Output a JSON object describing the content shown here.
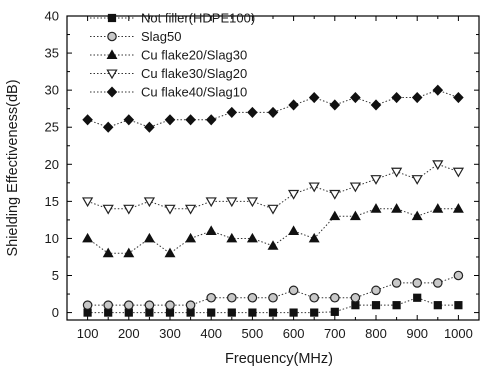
{
  "chart_data": {
    "type": "line",
    "xlabel": "Frequency(MHz)",
    "ylabel": "Shielding Effectiveness(dB)",
    "xlim": [
      50,
      1050
    ],
    "ylim": [
      -1,
      40
    ],
    "x_ticks": [
      "100",
      "200",
      "300",
      "400",
      "500",
      "600",
      "700",
      "800",
      "900",
      "1000"
    ],
    "y_ticks": [
      "0",
      "5",
      "10",
      "15",
      "20",
      "25",
      "30",
      "35",
      "40"
    ],
    "x": [
      100,
      150,
      200,
      250,
      300,
      350,
      400,
      450,
      500,
      550,
      600,
      650,
      700,
      750,
      800,
      850,
      900,
      950,
      1000
    ],
    "grid": false,
    "legend_position": "top-left",
    "series": [
      {
        "name": "Not filler(HDPE100)",
        "marker": "square-filled",
        "values": [
          0,
          0,
          0,
          0,
          0,
          0,
          0,
          0,
          0,
          0,
          0,
          0,
          0.1,
          1,
          1,
          1,
          2,
          1,
          1
        ]
      },
      {
        "name": "Slag50",
        "marker": "circle-open",
        "values": [
          1,
          1,
          1,
          1,
          1,
          1,
          2,
          2,
          2,
          2,
          3,
          2,
          2,
          2,
          3,
          4,
          4,
          4,
          5
        ]
      },
      {
        "name": "Cu flake20/Slag30",
        "marker": "triangle-up-filled",
        "values": [
          10,
          8,
          8,
          10,
          8,
          10,
          11,
          10,
          10,
          9,
          11,
          10,
          13,
          13,
          14,
          14,
          13,
          14,
          14
        ]
      },
      {
        "name": "Cu flake30/Slag20",
        "marker": "triangle-down-open",
        "values": [
          15,
          14,
          14,
          15,
          14,
          14,
          15,
          15,
          15,
          14,
          16,
          17,
          16,
          17,
          18,
          19,
          18,
          20,
          19
        ]
      },
      {
        "name": "Cu flake40/Slag10",
        "marker": "diamond-filled",
        "values": [
          26,
          25,
          26,
          25,
          26,
          26,
          26,
          27,
          27,
          27,
          28,
          29,
          28,
          29,
          28,
          29,
          29,
          30,
          29
        ]
      }
    ]
  }
}
